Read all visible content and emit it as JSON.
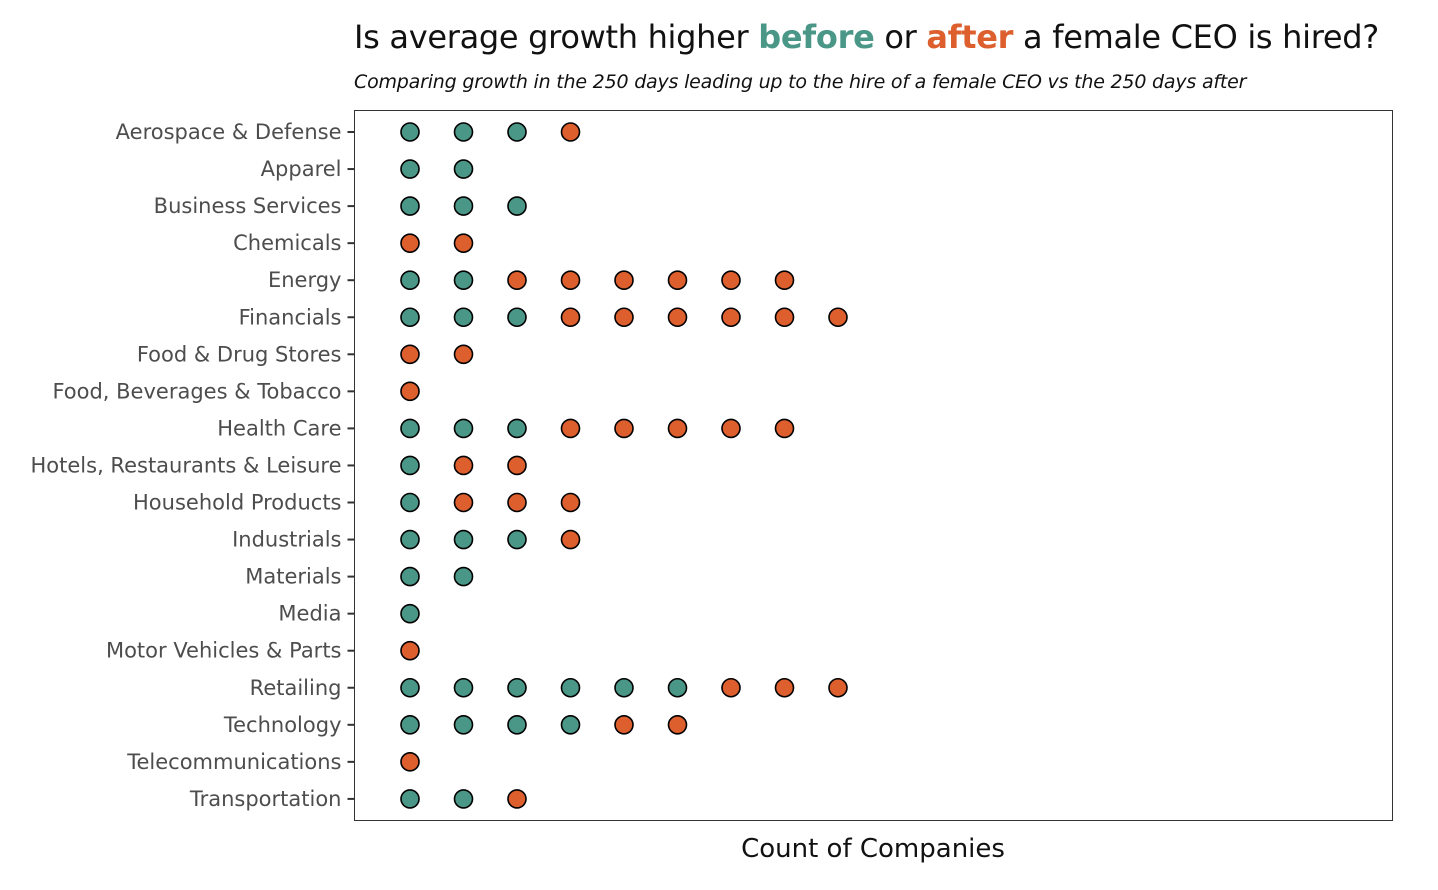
{
  "title": {
    "prefix": "Is average growth higher ",
    "before_word": "before",
    "middle": " or ",
    "after_word": "after",
    "suffix": " a female CEO is hired?"
  },
  "subtitle": "Comparing growth in the 250 days leading up to the hire of a female CEO vs the 250 days after",
  "colors": {
    "before": "#4a9788",
    "after": "#dc5f2d",
    "outline": "#000000",
    "axis": "#333333"
  },
  "chart_data": {
    "type": "scatter",
    "xlabel": "Count of Companies",
    "ylabel": "",
    "grid": false,
    "legend": "none",
    "categories": [
      "Aerospace & Defense",
      "Apparel",
      "Business Services",
      "Chemicals",
      "Energy",
      "Financials",
      "Food & Drug Stores",
      "Food, Beverages & Tobacco",
      "Health Care",
      "Hotels, Restaurants & Leisure",
      "Household Products",
      "Industrials",
      "Materials",
      "Media",
      "Motor Vehicles & Parts",
      "Retailing",
      "Technology",
      "Telecommunications",
      "Transportation"
    ],
    "series": [
      {
        "key": "before",
        "values": [
          3,
          2,
          3,
          0,
          2,
          3,
          0,
          0,
          3,
          1,
          1,
          3,
          2,
          1,
          0,
          6,
          4,
          0,
          2
        ]
      },
      {
        "key": "after",
        "values": [
          1,
          0,
          0,
          2,
          6,
          6,
          2,
          1,
          5,
          2,
          3,
          1,
          0,
          0,
          1,
          3,
          2,
          1,
          1
        ]
      }
    ]
  }
}
